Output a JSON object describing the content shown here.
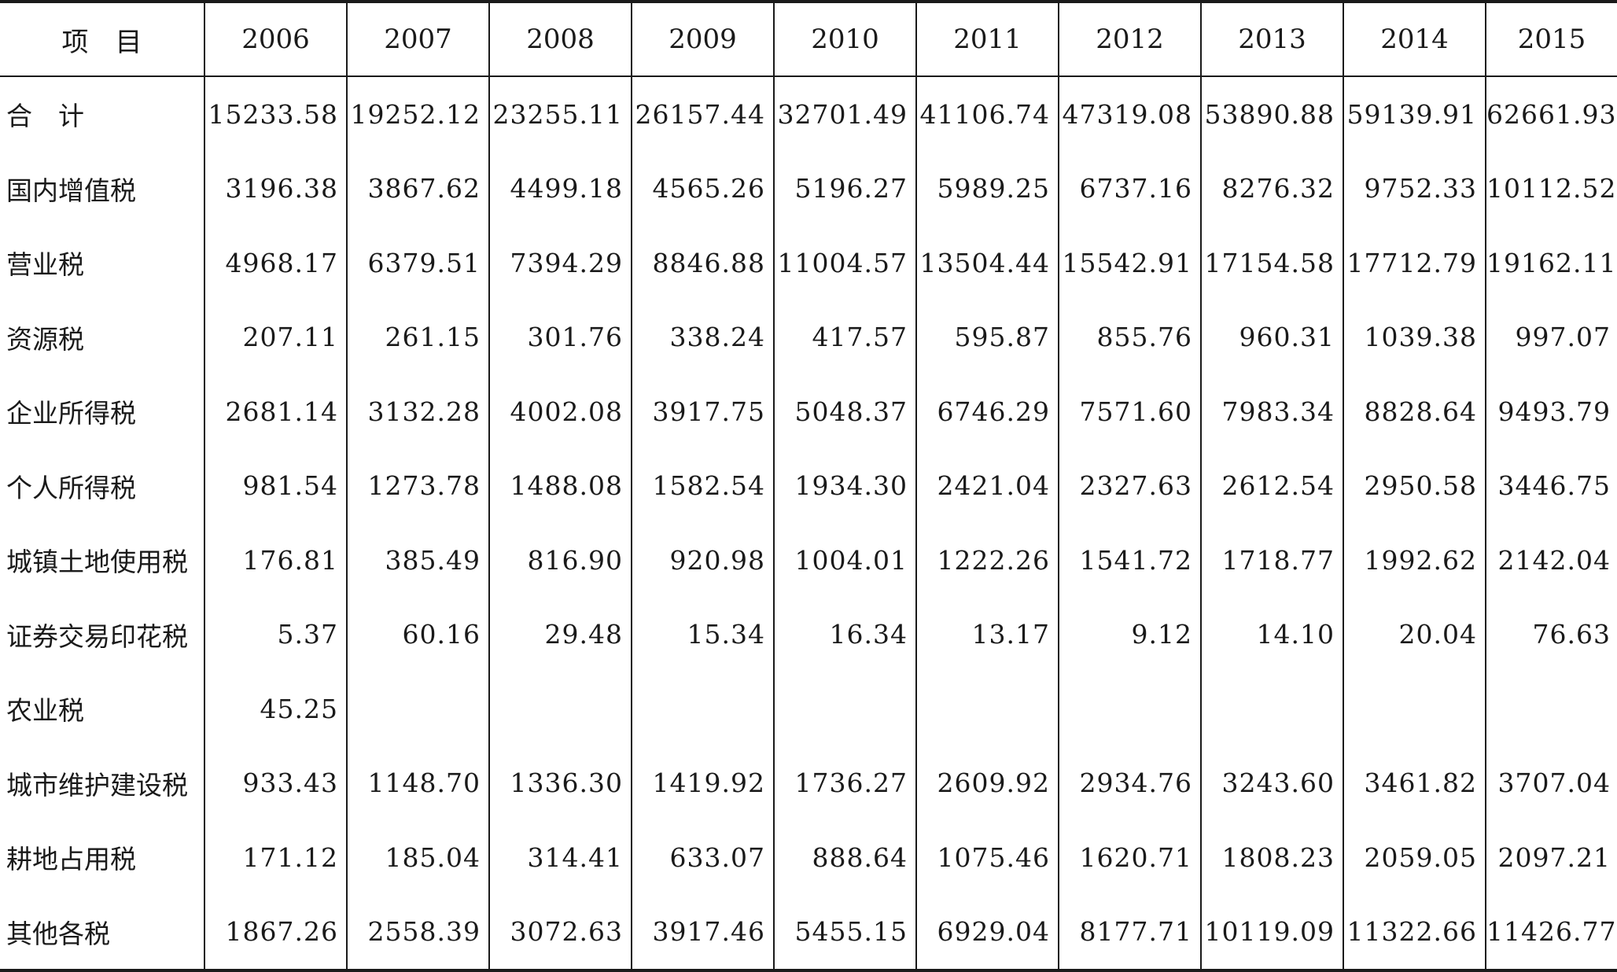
{
  "table": {
    "header_label": "项　目",
    "years": [
      "2006",
      "2007",
      "2008",
      "2009",
      "2010",
      "2011",
      "2012",
      "2013",
      "2014",
      "2015"
    ],
    "rows": [
      {
        "label": "合　计",
        "values": [
          "15233.58",
          "19252.12",
          "23255.11",
          "26157.44",
          "32701.49",
          "41106.74",
          "47319.08",
          "53890.88",
          "59139.91",
          "62661.93"
        ]
      },
      {
        "label": "国内增值税",
        "values": [
          "3196.38",
          "3867.62",
          "4499.18",
          "4565.26",
          "5196.27",
          "5989.25",
          "6737.16",
          "8276.32",
          "9752.33",
          "10112.52"
        ]
      },
      {
        "label": "营业税",
        "values": [
          "4968.17",
          "6379.51",
          "7394.29",
          "8846.88",
          "11004.57",
          "13504.44",
          "15542.91",
          "17154.58",
          "17712.79",
          "19162.11"
        ]
      },
      {
        "label": "资源税",
        "values": [
          "207.11",
          "261.15",
          "301.76",
          "338.24",
          "417.57",
          "595.87",
          "855.76",
          "960.31",
          "1039.38",
          "997.07"
        ]
      },
      {
        "label": "企业所得税",
        "values": [
          "2681.14",
          "3132.28",
          "4002.08",
          "3917.75",
          "5048.37",
          "6746.29",
          "7571.60",
          "7983.34",
          "8828.64",
          "9493.79"
        ]
      },
      {
        "label": "个人所得税",
        "values": [
          "981.54",
          "1273.78",
          "1488.08",
          "1582.54",
          "1934.30",
          "2421.04",
          "2327.63",
          "2612.54",
          "2950.58",
          "3446.75"
        ]
      },
      {
        "label": "城镇土地使用税",
        "values": [
          "176.81",
          "385.49",
          "816.90",
          "920.98",
          "1004.01",
          "1222.26",
          "1541.72",
          "1718.77",
          "1992.62",
          "2142.04"
        ]
      },
      {
        "label": "证券交易印花税",
        "values": [
          "5.37",
          "60.16",
          "29.48",
          "15.34",
          "16.34",
          "13.17",
          "9.12",
          "14.10",
          "20.04",
          "76.63"
        ]
      },
      {
        "label": "农业税",
        "values": [
          "45.25",
          "",
          "",
          "",
          "",
          "",
          "",
          "",
          "",
          ""
        ]
      },
      {
        "label": "城市维护建设税",
        "values": [
          "933.43",
          "1148.70",
          "1336.30",
          "1419.92",
          "1736.27",
          "2609.92",
          "2934.76",
          "3243.60",
          "3461.82",
          "3707.04"
        ]
      },
      {
        "label": "耕地占用税",
        "values": [
          "171.12",
          "185.04",
          "314.41",
          "633.07",
          "888.64",
          "1075.46",
          "1620.71",
          "1808.23",
          "2059.05",
          "2097.21"
        ]
      },
      {
        "label": "其他各税",
        "values": [
          "1867.26",
          "2558.39",
          "3072.63",
          "3917.46",
          "5455.15",
          "6929.04",
          "8177.71",
          "10119.09",
          "11322.66",
          "11426.77"
        ]
      }
    ]
  }
}
